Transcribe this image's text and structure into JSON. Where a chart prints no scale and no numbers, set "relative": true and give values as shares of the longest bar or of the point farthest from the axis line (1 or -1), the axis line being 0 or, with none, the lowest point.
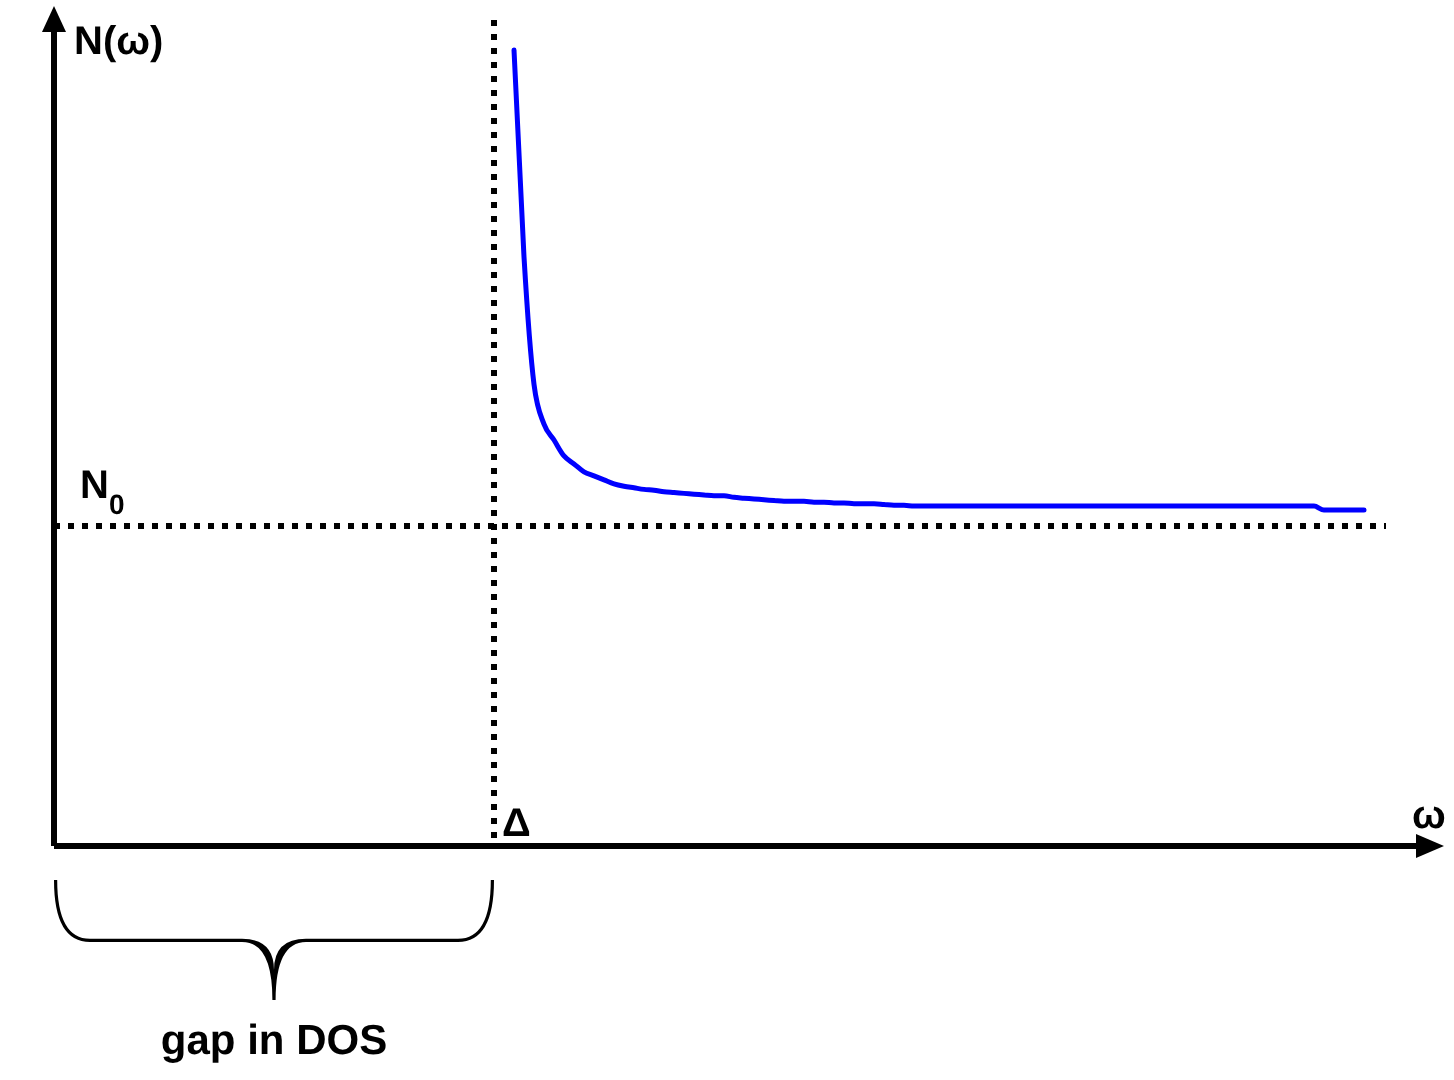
{
  "chart_data": {
    "type": "line",
    "relative": true,
    "xlabel": "ω",
    "ylabel": "N(ω)",
    "color": "#0000ff",
    "categories": [
      null,
      null,
      null,
      null,
      null,
      null,
      null,
      null,
      null,
      null,
      null,
      null,
      null,
      null,
      null,
      null,
      null,
      null,
      null,
      null,
      null,
      null,
      null,
      null,
      null,
      null,
      null,
      null,
      null,
      null,
      null,
      null,
      null,
      null,
      null,
      null,
      null,
      null,
      null,
      null,
      null,
      null,
      null,
      null,
      null,
      null,
      null,
      null,
      null,
      null,
      null,
      null,
      null,
      null,
      null,
      null,
      null,
      null,
      null,
      null,
      null,
      null,
      null,
      null,
      null,
      null,
      null,
      null,
      null,
      null,
      null,
      null,
      null,
      null,
      null,
      null,
      null,
      null,
      null,
      null,
      null,
      null,
      null,
      null,
      null,
      null,
      null,
      null,
      null,
      null,
      null,
      null,
      null,
      null,
      null,
      null,
      null,
      null,
      null,
      null,
      null,
      null,
      null,
      null,
      null,
      null,
      null,
      null,
      null,
      null,
      null,
      null,
      null,
      null,
      null,
      null,
      null,
      null,
      null,
      null,
      null,
      null,
      null,
      null,
      null,
      null,
      null,
      null,
      null,
      null,
      null,
      null,
      null,
      null,
      null,
      null,
      null,
      null
    ],
    "values": [
      null,
      null,
      null,
      null,
      null,
      null,
      null,
      null,
      null,
      null,
      null,
      null,
      null,
      null,
      null,
      null,
      null,
      null,
      null,
      null,
      null,
      null,
      null,
      null,
      null,
      null,
      null,
      null,
      null,
      null,
      null,
      null,
      null,
      null,
      null,
      null,
      null,
      null,
      null,
      null,
      null,
      null,
      null,
      null,
      null,
      null,
      1.0,
      0.74,
      0.58,
      0.53,
      0.51,
      0.49,
      0.48,
      0.47,
      0.465,
      0.46,
      0.455,
      0.452,
      0.45,
      0.448,
      0.447,
      0.445,
      0.444,
      0.443,
      0.442,
      0.441,
      0.44,
      0.44,
      0.438,
      0.437,
      0.436,
      0.435,
      0.434,
      0.433,
      0.433,
      0.433,
      0.432,
      0.432,
      0.431,
      0.431,
      0.43,
      0.43,
      0.43,
      0.429,
      0.428,
      0.428,
      0.427,
      0.427,
      0.427,
      0.427,
      0.427,
      0.427,
      0.427,
      0.427,
      0.427,
      0.427,
      0.427,
      0.427,
      0.427,
      0.427,
      0.427,
      0.427,
      0.427,
      0.427,
      0.427,
      0.427,
      0.427,
      0.427,
      0.427,
      0.427,
      0.427,
      0.427,
      0.427,
      0.427,
      0.427,
      0.427,
      0.427,
      0.427,
      0.427,
      0.427,
      0.427,
      0.427,
      0.427,
      0.427,
      0.427,
      0.427,
      0.427,
      0.422,
      0.422,
      0.422,
      0.422,
      0.422,
      null,
      null,
      null,
      null,
      null,
      null
    ],
    "ref_lines": [
      {
        "axis": "y",
        "value": 0.402,
        "label": "N$_{0}$",
        "line_style": "dotted",
        "color": "#000000"
      }
    ],
    "annotations": [
      "Δ",
      "gap in DOS"
    ]
  }
}
